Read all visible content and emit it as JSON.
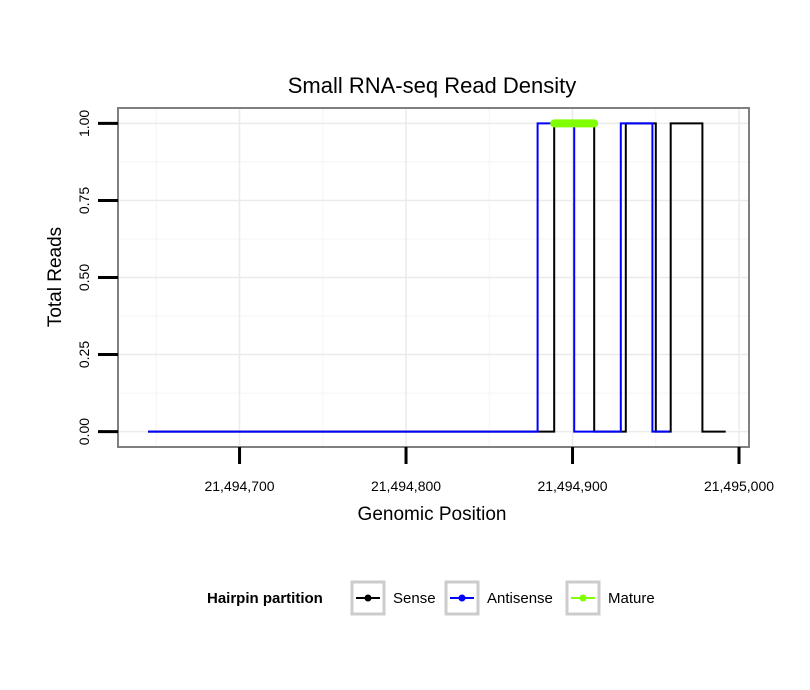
{
  "chart_data": {
    "type": "line",
    "title": "Small RNA-seq Read Density",
    "xlabel": "Genomic Position",
    "ylabel": "Total Reads",
    "xlim": [
      21494627,
      21495006
    ],
    "ylim": [
      -0.05,
      1.05
    ],
    "x_ticks": [
      21494700,
      21494800,
      21494900,
      21495000
    ],
    "x_tick_labels": [
      "21,494,700",
      "21,494,800",
      "21,494,900",
      "21,495,000"
    ],
    "y_ticks": [
      0,
      0.25,
      0.5,
      0.75,
      1.0
    ],
    "y_tick_labels": [
      "0.00",
      "0.25",
      "0.50",
      "0.75",
      "1.00"
    ],
    "legend": {
      "title": "Hairpin partition",
      "position": "bottom",
      "entries": [
        "Sense",
        "Antisense",
        "Mature"
      ]
    },
    "series": [
      {
        "name": "Sense",
        "color": "#000000",
        "x": [
          21494645,
          21494889,
          21494889,
          21494913,
          21494913,
          21494932,
          21494932,
          21494950,
          21494950,
          21494959,
          21494959,
          21494978,
          21494978,
          21494992
        ],
        "y": [
          0,
          0,
          1,
          1,
          0,
          0,
          1,
          1,
          0,
          0,
          1,
          1,
          0,
          0
        ]
      },
      {
        "name": "Antisense",
        "color": "#0000ff",
        "x": [
          21494645,
          21494879,
          21494879,
          21494901,
          21494901,
          21494929,
          21494929,
          21494948,
          21494948,
          21494958
        ],
        "y": [
          0,
          0,
          1,
          1,
          0,
          0,
          1,
          1,
          0,
          0
        ]
      },
      {
        "name": "Mature",
        "color": "#7fff00",
        "x": [
          21494889,
          21494913
        ],
        "y": [
          1,
          1
        ]
      }
    ]
  }
}
